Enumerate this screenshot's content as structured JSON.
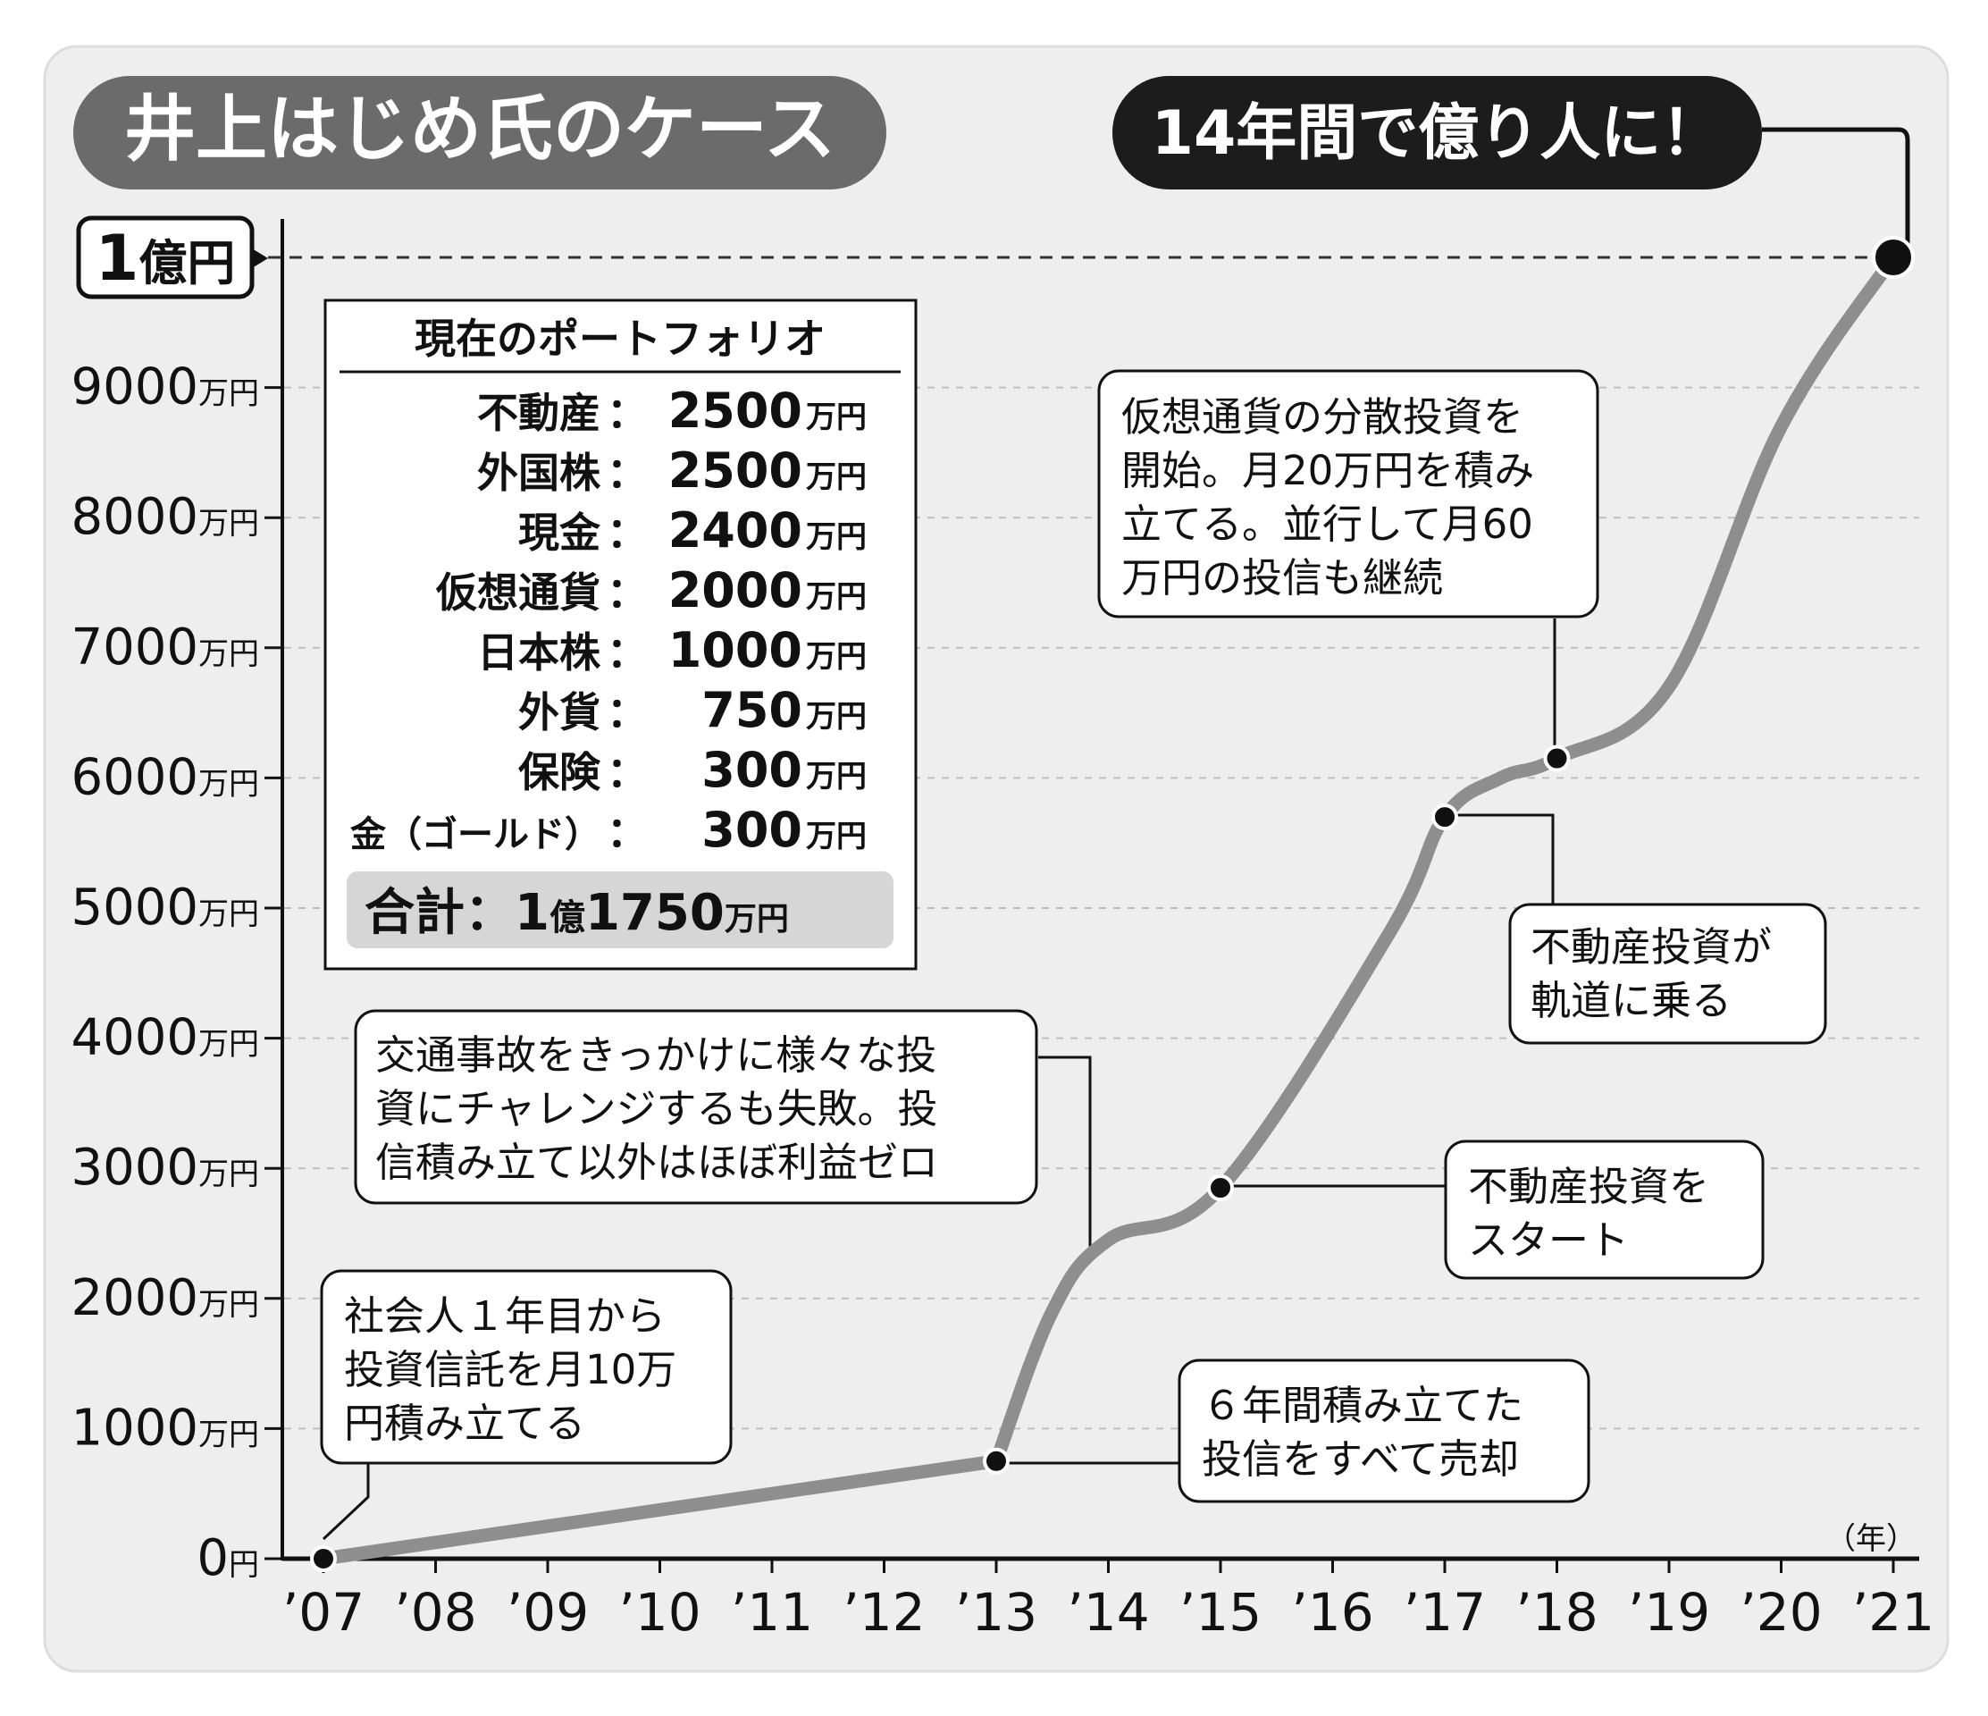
{
  "chart_data": {
    "type": "line",
    "title": "井上はじめ氏のケース",
    "headline": "14年間で億り人に！",
    "x_unit_label": "（年）",
    "categories": [
      "’07",
      "’08",
      "’09",
      "’10",
      "’11",
      "’12",
      "’13",
      "’14",
      "’15",
      "’16",
      "’17",
      "’18",
      "’19",
      "’20",
      "’21"
    ],
    "y_ticks": [
      {
        "value": 0,
        "num": "0",
        "unit": "円"
      },
      {
        "value": 1000,
        "num": "1000",
        "unit": "万円"
      },
      {
        "value": 2000,
        "num": "2000",
        "unit": "万円"
      },
      {
        "value": 3000,
        "num": "3000",
        "unit": "万円"
      },
      {
        "value": 4000,
        "num": "4000",
        "unit": "万円"
      },
      {
        "value": 5000,
        "num": "5000",
        "unit": "万円"
      },
      {
        "value": 6000,
        "num": "6000",
        "unit": "万円"
      },
      {
        "value": 7000,
        "num": "7000",
        "unit": "万円"
      },
      {
        "value": 8000,
        "num": "8000",
        "unit": "万円"
      },
      {
        "value": 9000,
        "num": "9000",
        "unit": "万円"
      }
    ],
    "ylim": [
      0,
      10000
    ],
    "reference_line": {
      "value": 10000,
      "label_num": "1",
      "label_unit": "億円"
    },
    "series": [
      {
        "points": [
          [
            2007,
            0
          ],
          [
            2013,
            750
          ],
          [
            2013.5,
            1900
          ],
          [
            2014,
            2450
          ],
          [
            2015,
            2850
          ],
          [
            2016.5,
            4800
          ],
          [
            2017,
            5700
          ],
          [
            2017.5,
            6000
          ],
          [
            2018,
            6150
          ],
          [
            2019,
            6700
          ],
          [
            2020,
            8700
          ],
          [
            2021,
            10000
          ]
        ]
      }
    ],
    "markers": [
      {
        "x": 2007,
        "y": 0
      },
      {
        "x": 2013,
        "y": 750
      },
      {
        "x": 2015,
        "y": 2850
      },
      {
        "x": 2017,
        "y": 5700
      },
      {
        "x": 2018,
        "y": 6150
      },
      {
        "x": 2021,
        "y": 10000
      }
    ]
  },
  "portfolio": {
    "title": "現在のポートフォリオ",
    "rows": [
      {
        "name": "不動産",
        "sep": "：",
        "amount": "2500",
        "unit": "万円"
      },
      {
        "name": "外国株",
        "sep": "：",
        "amount": "2500",
        "unit": "万円"
      },
      {
        "name": "現金",
        "sep": "：",
        "amount": "2400",
        "unit": "万円"
      },
      {
        "name": "仮想通貨",
        "sep": "：",
        "amount": "2000",
        "unit": "万円"
      },
      {
        "name": "日本株",
        "sep": "：",
        "amount": "1000",
        "unit": "万円"
      },
      {
        "name": "外貨",
        "sep": "：",
        "amount": "750",
        "unit": "万円"
      },
      {
        "name": "保険",
        "sep": "：",
        "amount": "300",
        "unit": "万円"
      },
      {
        "name": "金（ゴールド）",
        "sep": "：",
        "amount": "300",
        "unit": "万円"
      }
    ],
    "total": {
      "label": "合計：1",
      "oku": "億",
      "amount": "1750",
      "unit": "万円"
    }
  },
  "annotations": [
    {
      "id": "ann-2007",
      "lines": [
        "社会人１年目から",
        "投資信託を月10万",
        "円積み立てる"
      ]
    },
    {
      "id": "ann-2013",
      "lines": [
        "６年間積み立てた",
        "投信をすべて売却"
      ]
    },
    {
      "id": "ann-2014",
      "lines": [
        "交通事故をきっかけに様々な投",
        "資にチャレンジするも失敗。投",
        "信積み立て以外はほぼ利益ゼロ"
      ]
    },
    {
      "id": "ann-2015",
      "lines": [
        "不動産投資を",
        "スタート"
      ]
    },
    {
      "id": "ann-2017",
      "lines": [
        "不動産投資が",
        "軌道に乗る"
      ]
    },
    {
      "id": "ann-2018",
      "lines": [
        "仮想通貨の分散投資を",
        "開始。月20万円を積み",
        "立てる。並行して月60",
        "万円の投信も継続"
      ]
    }
  ]
}
